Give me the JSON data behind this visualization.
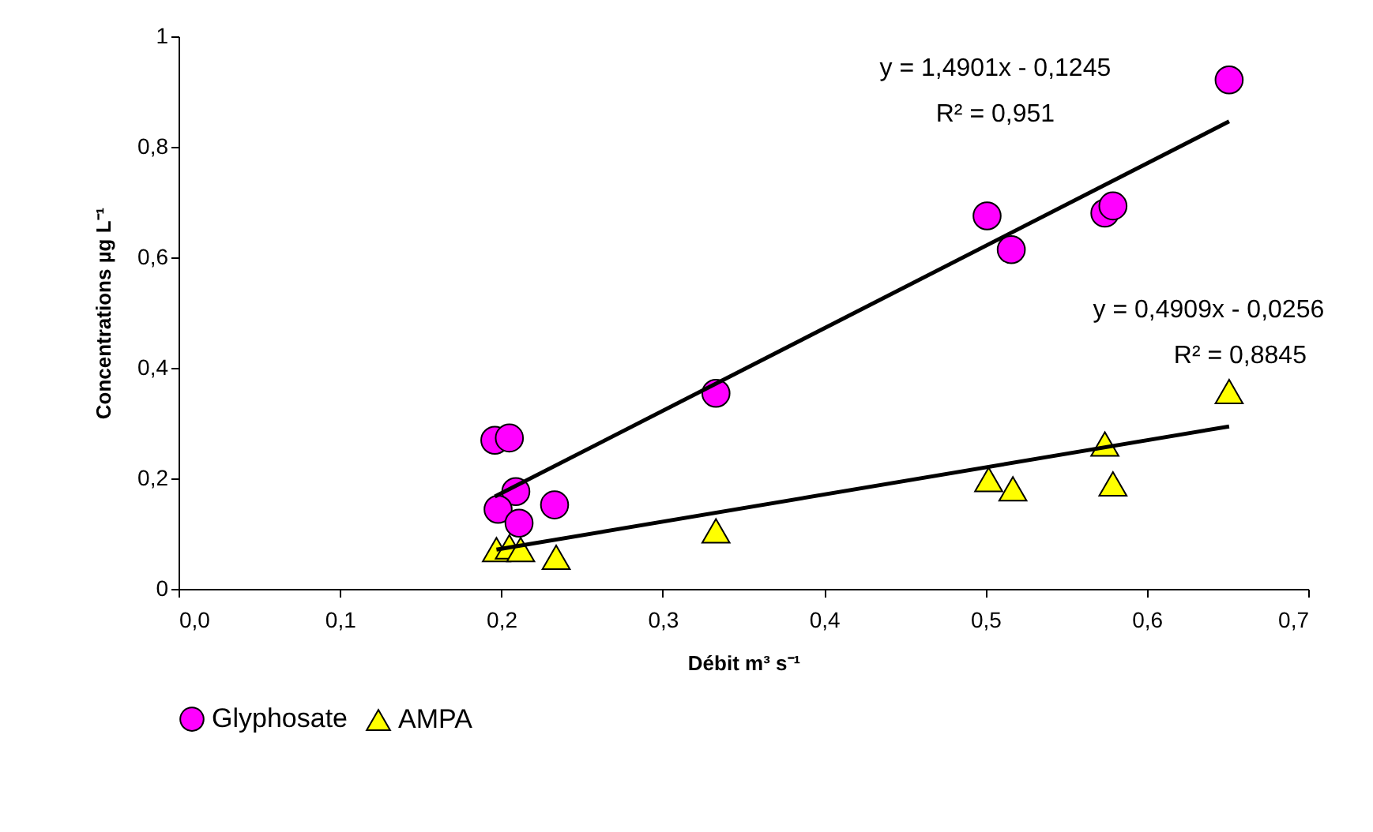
{
  "chart_data": {
    "type": "scatter",
    "xlabel": "Débit m³ s⁻¹",
    "ylabel": "Concentrations µg L⁻¹",
    "xlim": [
      0,
      0.7
    ],
    "xticks": [
      {
        "value": 0,
        "label": "0,0"
      },
      {
        "value": 0.1,
        "label": "0,1"
      },
      {
        "value": 0.2,
        "label": "0,2"
      },
      {
        "value": 0.3,
        "label": "0,3"
      },
      {
        "value": 0.4,
        "label": "0,4"
      },
      {
        "value": 0.5,
        "label": "0,5"
      },
      {
        "value": 0.6,
        "label": "0,6"
      },
      {
        "value": 0.7,
        "label": "0,7"
      }
    ],
    "ylim": [
      0,
      1
    ],
    "yticks": [
      {
        "value": 0,
        "label": "0"
      },
      {
        "value": 0.2,
        "label": "0,2"
      },
      {
        "value": 0.4,
        "label": "0,4"
      },
      {
        "value": 0.6,
        "label": "0,6"
      },
      {
        "value": 0.8,
        "label": "0,8"
      },
      {
        "value": 1,
        "label": "1"
      }
    ],
    "grid": false,
    "legend": "bottom",
    "series": [
      {
        "name": "Glyphosate",
        "marker": "circle",
        "color": "#ff00ff",
        "x": [
          0.196,
          0.205,
          0.209,
          0.198,
          0.211,
          0.233,
          0.333,
          0.501,
          0.516,
          0.574,
          0.579,
          0.651
        ],
        "values": [
          0.269,
          0.273,
          0.176,
          0.144,
          0.119,
          0.152,
          0.354,
          0.675,
          0.614,
          0.68,
          0.693,
          0.921
        ]
      },
      {
        "name": "AMPA",
        "marker": "triangle",
        "color": "#ffff00",
        "x": [
          0.197,
          0.205,
          0.212,
          0.234,
          0.333,
          0.502,
          0.517,
          0.574,
          0.579,
          0.651
        ],
        "values": [
          0.071,
          0.076,
          0.071,
          0.057,
          0.105,
          0.198,
          0.181,
          0.262,
          0.19,
          0.357
        ]
      },
      {
        "type": "line",
        "marker": "none",
        "color": "#000000",
        "x": [
          0.196,
          0.651
        ],
        "values": [
          0.167,
          0.846
        ]
      },
      {
        "type": "line",
        "marker": "none",
        "color": "#000000",
        "x": [
          0.197,
          0.651
        ],
        "values": [
          0.071,
          0.294
        ]
      }
    ],
    "annotations": [
      "y = 1,4901x - 0,1245",
      "R² = 0,951",
      "y = 0,4909x - 0,0256",
      "R² = 0,8845"
    ]
  }
}
